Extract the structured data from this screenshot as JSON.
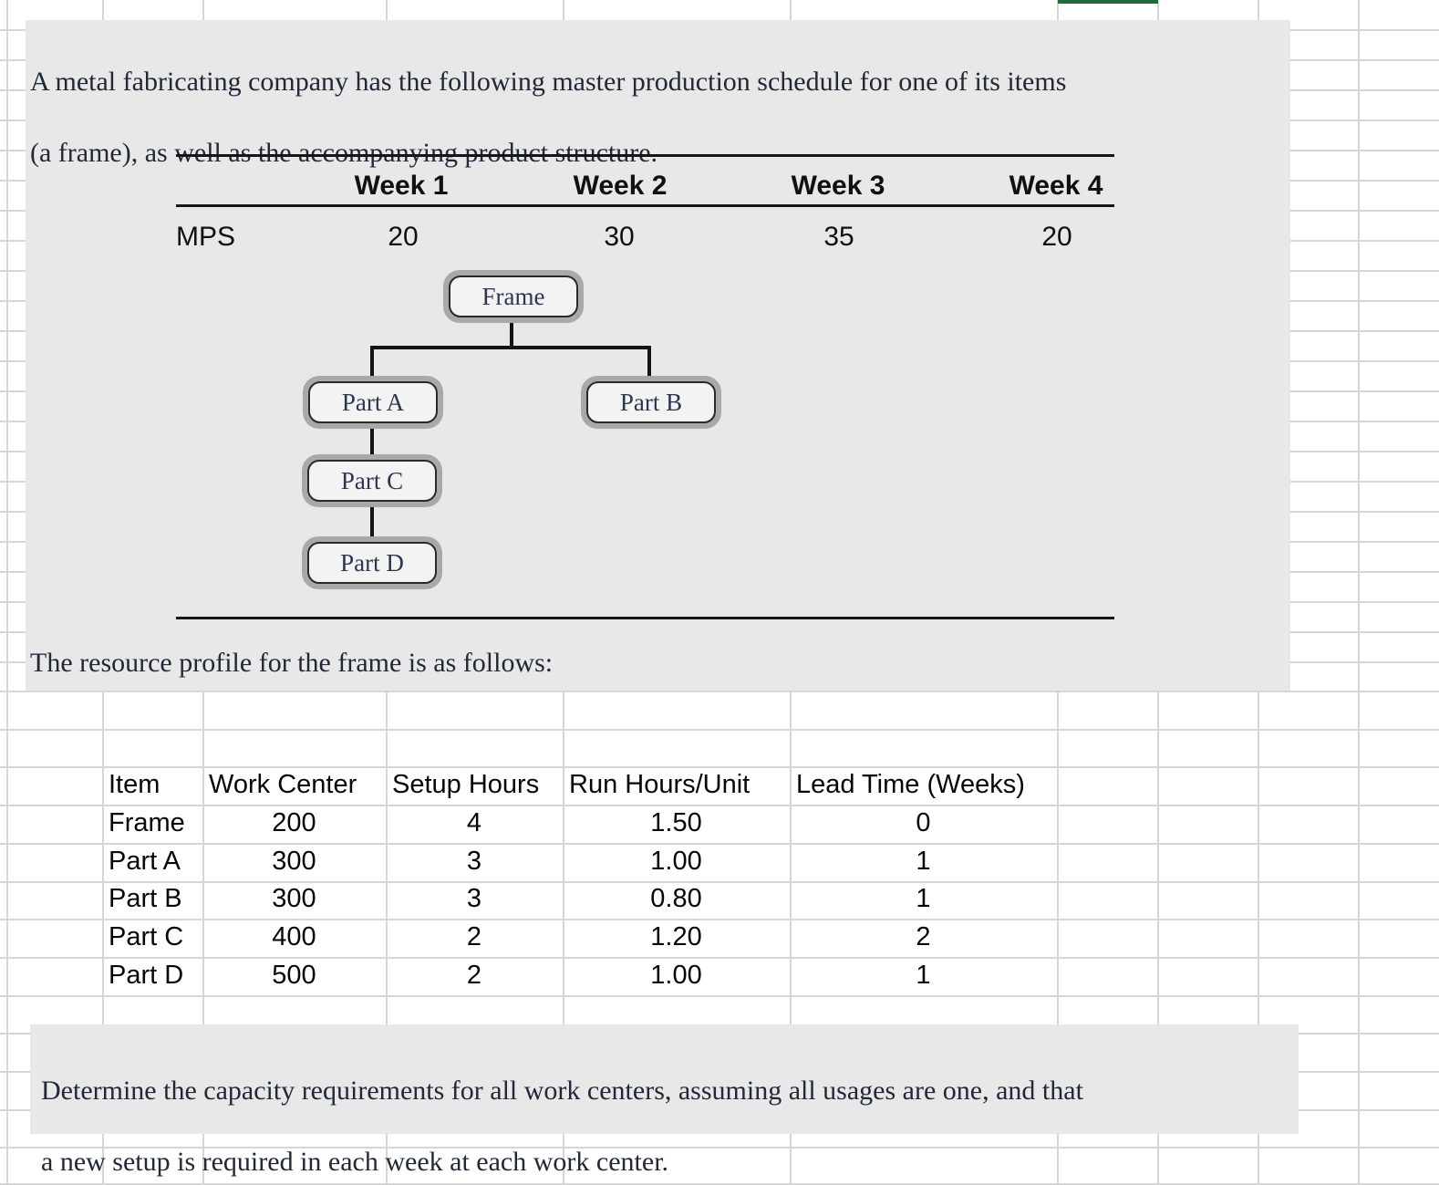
{
  "problem": {
    "line1": "A metal fabricating company has the following master production schedule for one of its items",
    "line2": "(a frame), as well as the accompanying product structure."
  },
  "mps_table": {
    "row_label": "MPS",
    "columns": [
      "Week 1",
      "Week 2",
      "Week 3",
      "Week 4"
    ],
    "values": [
      "20",
      "30",
      "35",
      "20"
    ]
  },
  "diagram": {
    "frame": "Frame",
    "part_a": "Part A",
    "part_b": "Part B",
    "part_c": "Part C",
    "part_d": "Part D"
  },
  "resource_intro": "The resource profile for the frame is as follows:",
  "resource_table": {
    "headers": [
      "Item",
      "Work Center",
      "Setup Hours",
      "Run Hours/Unit",
      "Lead Time (Weeks)"
    ],
    "rows": [
      [
        "Frame",
        "200",
        "4",
        "1.50",
        "0"
      ],
      [
        "Part A",
        "300",
        "3",
        "1.00",
        "1"
      ],
      [
        "Part B",
        "300",
        "3",
        "0.80",
        "1"
      ],
      [
        "Part C",
        "400",
        "2",
        "1.20",
        "2"
      ],
      [
        "Part D",
        "500",
        "2",
        "1.00",
        "1"
      ]
    ]
  },
  "question": {
    "line1": "Determine the capacity requirements for all work centers, assuming all usages are one, and that",
    "line2": "a new setup is required in each week at each work center."
  },
  "colors": {
    "panel_gray": "#e8e8e8",
    "grid_gray": "#d6d6d6",
    "selection_green": "#1e6b3c"
  }
}
